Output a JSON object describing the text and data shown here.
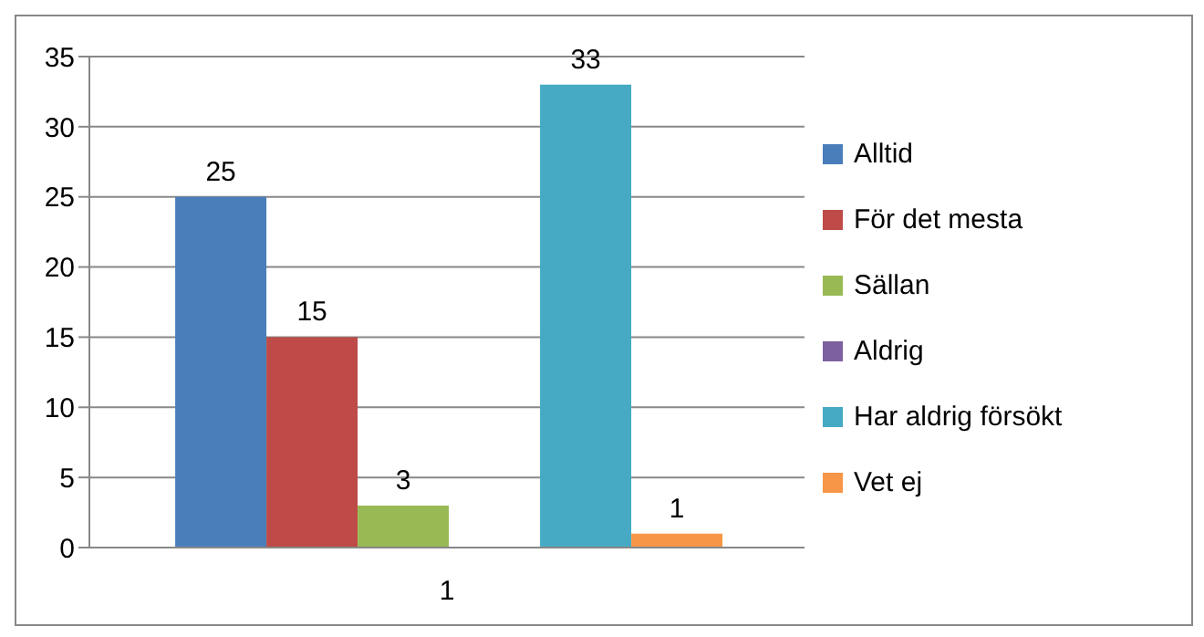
{
  "chart_data": {
    "type": "bar",
    "categories": [
      "1"
    ],
    "series": [
      {
        "name": "Alltid",
        "color": "#4a7ebb",
        "values": [
          25
        ],
        "value_labels": [
          "25"
        ]
      },
      {
        "name": "För det mesta",
        "color": "#be4b48",
        "values": [
          15
        ],
        "value_labels": [
          "15"
        ]
      },
      {
        "name": "Sällan",
        "color": "#98b954",
        "values": [
          3
        ],
        "value_labels": [
          "3"
        ]
      },
      {
        "name": "Aldrig",
        "color": "#7d60a0",
        "values": [
          0
        ],
        "value_labels": [
          null
        ]
      },
      {
        "name": "Har aldrig försökt",
        "color": "#46aac5",
        "values": [
          33
        ],
        "value_labels": [
          "33"
        ]
      },
      {
        "name": "Vet ej",
        "color": "#f79646",
        "values": [
          1
        ],
        "value_labels": [
          "1"
        ]
      }
    ],
    "ylim": [
      0,
      35
    ],
    "yticks": [
      0,
      5,
      10,
      15,
      20,
      25,
      30,
      35
    ],
    "grid": "y",
    "legend": "right"
  }
}
